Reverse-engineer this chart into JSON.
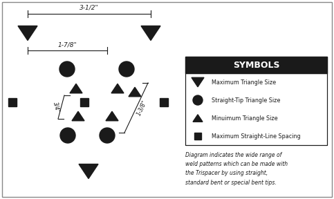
{
  "bg_color": "#ffffff",
  "border_color": "#555555",
  "title": "SYMBOLS",
  "legend_items": [
    {
      "label": "Maximum Triangle Size",
      "marker": "triangle_down"
    },
    {
      "label": "Straight-Tip Triangle Size",
      "marker": "circle"
    },
    {
      "label": "Minuimum Triangle Size",
      "marker": "triangle_up"
    },
    {
      "label": "Maximum Straight-Line Spacing",
      "marker": "square"
    }
  ],
  "caption": "Diagram indicates the wide range of\nweld patterns which can be made with\nthe Trispacer by using straight,\nstandard bent or special bent tips.",
  "dim_35_label": "3-1/2\"",
  "dim_178_label": "1-7/8\"",
  "dim_34_label": "3/4\"",
  "dim_138_label": "1-3/8\"",
  "figw": 4.83,
  "figh": 2.88,
  "dpi": 100
}
